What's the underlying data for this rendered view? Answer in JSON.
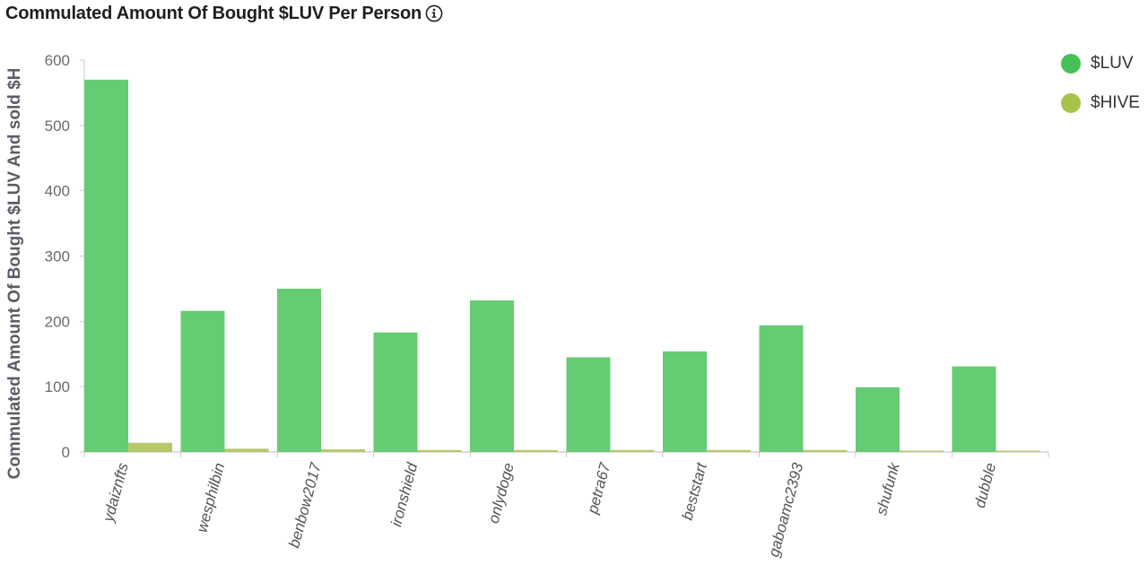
{
  "header": {
    "title": "Commulated Amount Of Bought $LUV Per Person",
    "info_icon": "info-icon"
  },
  "chart_data": {
    "type": "bar",
    "title": "Commulated Amount Of Bought $LUV Per Person",
    "xlabel": "",
    "ylabel": "Commulated Amount Of Bought $LUV And sold $H",
    "ylim": [
      0,
      600
    ],
    "yticks": [
      0,
      100,
      200,
      300,
      400,
      500,
      600
    ],
    "grid": false,
    "legend_position": "top-right",
    "categories": [
      "ydaiznfts",
      "wesphilbin",
      "benbow2017",
      "ironshield",
      "onlydoge",
      "petra67",
      "beststart",
      "gaboamc2393",
      "shufunk",
      "dubble"
    ],
    "series": [
      {
        "name": "$LUV",
        "color": "#66cc73",
        "legend_color": "#45c157",
        "values": [
          570,
          216,
          250,
          183,
          232,
          145,
          154,
          194,
          99,
          131
        ]
      },
      {
        "name": "$HIVE",
        "color": "#b5c96a",
        "legend_color": "#a9c24a",
        "values": [
          14,
          5,
          4,
          3,
          3,
          3,
          3,
          3,
          2,
          2
        ]
      }
    ]
  }
}
